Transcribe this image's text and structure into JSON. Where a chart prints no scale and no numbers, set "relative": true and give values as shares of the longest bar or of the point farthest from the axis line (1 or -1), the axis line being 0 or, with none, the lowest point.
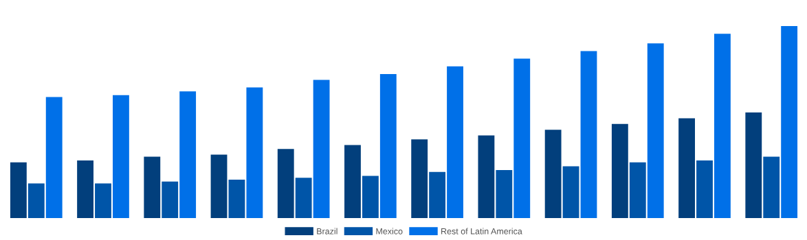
{
  "chart_data": {
    "type": "bar",
    "relative": true,
    "categories": [
      null,
      null,
      null,
      null,
      null,
      null,
      null,
      null,
      null,
      null,
      null,
      null
    ],
    "series": [
      {
        "name": "Brazil",
        "color": "#023f7c",
        "values": [
          0.29,
          0.3,
          0.32,
          0.33,
          0.36,
          0.38,
          0.41,
          0.43,
          0.46,
          0.49,
          0.52,
          0.55
        ]
      },
      {
        "name": "Mexico",
        "color": "#0055a8",
        "values": [
          0.18,
          0.18,
          0.19,
          0.2,
          0.21,
          0.22,
          0.24,
          0.25,
          0.27,
          0.29,
          0.3,
          0.32
        ]
      },
      {
        "name": "Rest of Latin America",
        "color": "#0070e8",
        "values": [
          0.63,
          0.64,
          0.66,
          0.68,
          0.72,
          0.75,
          0.79,
          0.83,
          0.87,
          0.91,
          0.96,
          1.0
        ]
      }
    ],
    "legend": "bottom",
    "grid": false
  }
}
